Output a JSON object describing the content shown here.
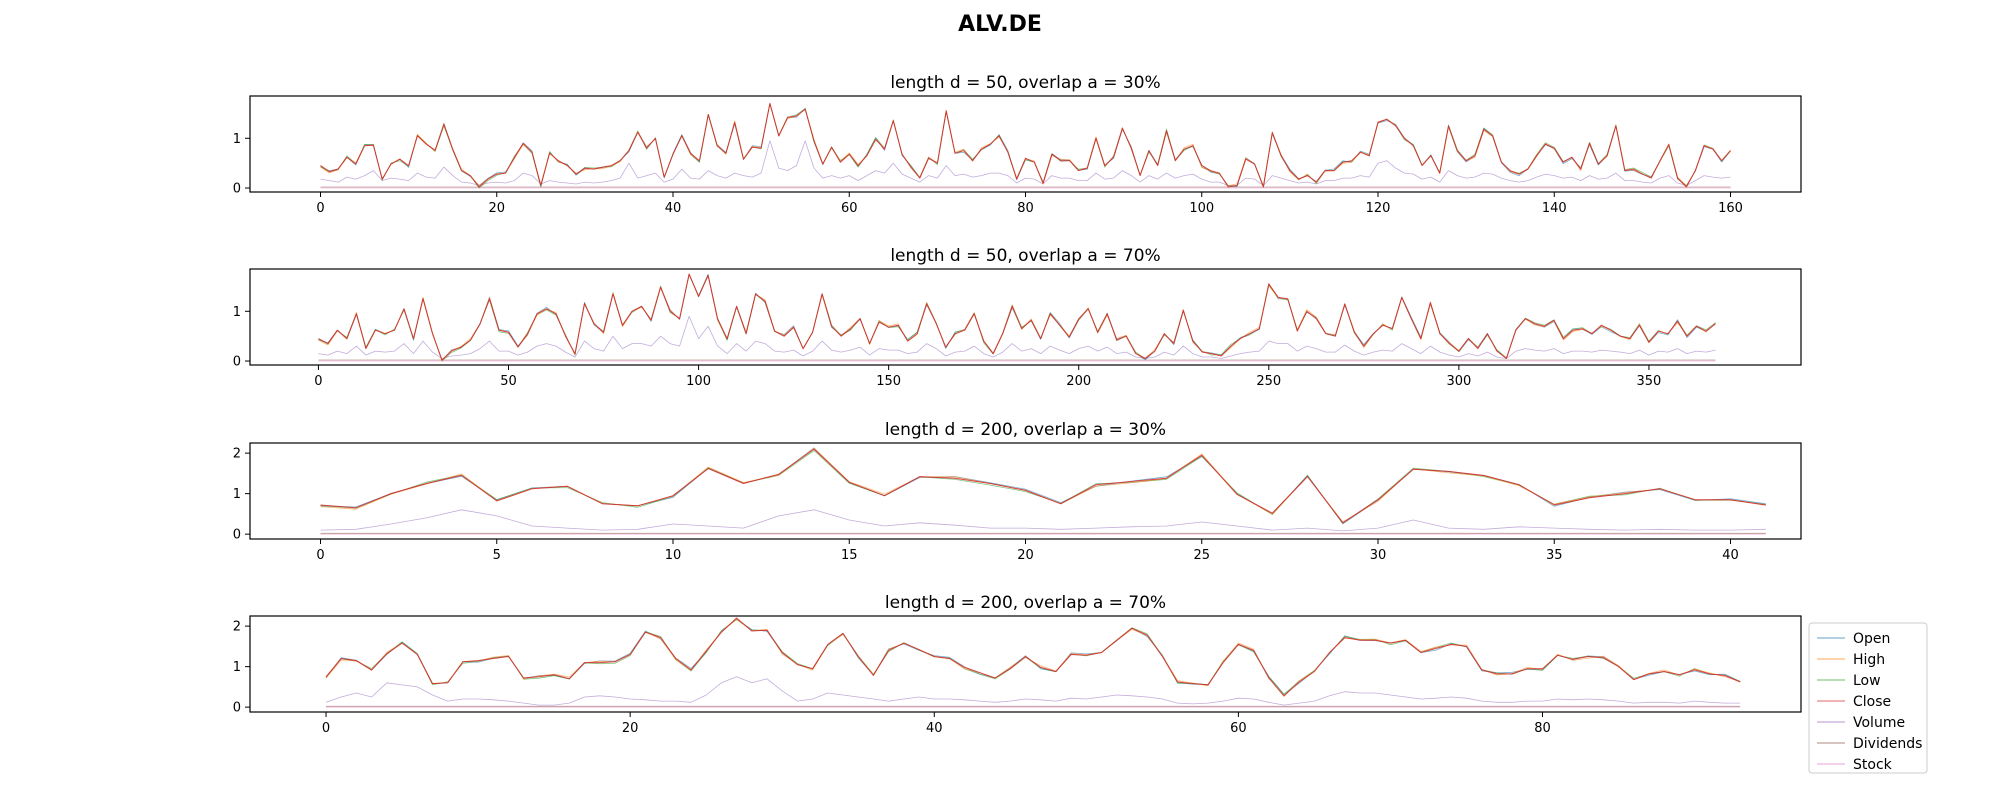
{
  "title": "ALV.DE",
  "legend": {
    "placement": "right",
    "entries": [
      "Open",
      "High",
      "Low",
      "Close",
      "Volume",
      "Dividends",
      "Stock"
    ]
  },
  "chart_data": [
    {
      "type": "line",
      "title": "length d = 50, overlap a = 30%",
      "xlim": [
        -8,
        168
      ],
      "ylim": [
        -0.08,
        1.85
      ],
      "xticks": [
        0,
        20,
        40,
        60,
        80,
        100,
        120,
        140,
        160
      ],
      "yticks": [
        0,
        1
      ],
      "grid": false,
      "x_start": 0,
      "x_step": 1,
      "close": [
        0.45,
        0.33,
        0.38,
        0.62,
        0.48,
        0.85,
        0.86,
        0.18,
        0.48,
        0.58,
        0.45,
        1.05,
        0.88,
        0.76,
        1.28,
        0.78,
        0.35,
        0.25,
        0.02,
        0.18,
        0.28,
        0.3,
        0.62,
        0.9,
        0.72,
        0.05,
        0.7,
        0.55,
        0.45,
        0.28,
        0.4,
        0.38,
        0.42,
        0.45,
        0.55,
        0.75,
        1.12,
        0.8,
        1.0,
        0.22,
        0.68,
        1.05,
        0.7,
        0.55,
        1.48,
        0.85,
        0.7,
        1.32,
        0.58,
        0.82,
        0.8,
        1.7,
        1.05,
        1.42,
        1.45,
        1.58,
        0.95,
        0.48,
        0.82,
        0.52,
        0.68,
        0.45,
        0.65,
        0.98,
        0.78,
        1.35,
        0.68,
        0.42,
        0.2,
        0.6,
        0.5,
        1.55,
        0.7,
        0.75,
        0.55,
        0.78,
        0.88,
        1.05,
        0.72,
        0.18,
        0.6,
        0.52,
        0.1,
        0.68,
        0.55,
        0.55,
        0.35,
        0.4,
        1.0,
        0.45,
        0.62,
        1.2,
        0.8,
        0.25,
        0.75,
        0.45,
        1.15,
        0.55,
        0.78,
        0.85,
        0.45,
        0.35,
        0.3,
        0.02,
        0.05,
        0.58,
        0.48,
        0.02,
        1.12,
        0.65,
        0.35,
        0.18,
        0.25,
        0.12,
        0.35,
        0.35,
        0.52,
        0.55,
        0.72,
        0.65,
        1.32,
        1.38,
        1.25,
        1.0,
        0.85,
        0.45,
        0.65,
        0.3,
        1.25,
        0.75,
        0.55,
        0.65,
        1.18,
        1.05,
        0.52,
        0.35,
        0.28,
        0.38,
        0.65,
        0.88,
        0.8,
        0.52,
        0.62,
        0.38,
        0.9,
        0.48,
        0.65,
        1.25,
        0.35,
        0.38,
        0.28,
        0.2,
        0.55,
        0.88,
        0.2,
        0.02,
        0.35,
        0.85,
        0.78,
        0.55,
        0.75
      ],
      "volume": [
        0.18,
        0.15,
        0.12,
        0.22,
        0.18,
        0.25,
        0.35,
        0.15,
        0.2,
        0.18,
        0.15,
        0.3,
        0.22,
        0.2,
        0.42,
        0.25,
        0.12,
        0.1,
        0.05,
        0.1,
        0.12,
        0.1,
        0.15,
        0.3,
        0.25,
        0.08,
        0.15,
        0.12,
        0.1,
        0.08,
        0.12,
        0.1,
        0.12,
        0.15,
        0.2,
        0.5,
        0.2,
        0.25,
        0.3,
        0.12,
        0.18,
        0.38,
        0.2,
        0.18,
        0.35,
        0.25,
        0.2,
        0.3,
        0.25,
        0.22,
        0.3,
        0.95,
        0.4,
        0.35,
        0.45,
        0.95,
        0.4,
        0.2,
        0.25,
        0.2,
        0.25,
        0.15,
        0.25,
        0.35,
        0.3,
        0.5,
        0.28,
        0.2,
        0.12,
        0.25,
        0.2,
        0.45,
        0.25,
        0.28,
        0.22,
        0.25,
        0.3,
        0.3,
        0.25,
        0.1,
        0.2,
        0.18,
        0.08,
        0.25,
        0.2,
        0.2,
        0.15,
        0.15,
        0.3,
        0.18,
        0.2,
        0.35,
        0.25,
        0.12,
        0.25,
        0.18,
        0.3,
        0.2,
        0.25,
        0.28,
        0.18,
        0.12,
        0.12,
        0.05,
        0.05,
        0.2,
        0.18,
        0.05,
        0.25,
        0.2,
        0.15,
        0.1,
        0.12,
        0.08,
        0.15,
        0.15,
        0.2,
        0.2,
        0.25,
        0.22,
        0.5,
        0.55,
        0.4,
        0.3,
        0.28,
        0.18,
        0.22,
        0.12,
        0.35,
        0.25,
        0.2,
        0.22,
        0.3,
        0.28,
        0.2,
        0.15,
        0.12,
        0.15,
        0.22,
        0.28,
        0.25,
        0.2,
        0.22,
        0.15,
        0.25,
        0.18,
        0.2,
        0.3,
        0.15,
        0.15,
        0.12,
        0.1,
        0.2,
        0.25,
        0.1,
        0.05,
        0.15,
        0.25,
        0.22,
        0.2,
        0.22
      ],
      "dividends": 0.02
    },
    {
      "type": "line",
      "title": "length d = 50, overlap a = 70%",
      "xlim": [
        -18,
        390
      ],
      "ylim": [
        -0.08,
        1.85
      ],
      "xticks": [
        0,
        50,
        100,
        150,
        200,
        250,
        300,
        350
      ],
      "yticks": [
        0,
        1
      ],
      "grid": false,
      "x_start": 0,
      "x_step": 2.5,
      "close": [
        0.45,
        0.35,
        0.62,
        0.45,
        0.95,
        0.25,
        0.62,
        0.55,
        0.62,
        1.05,
        0.45,
        1.25,
        0.55,
        0.02,
        0.2,
        0.28,
        0.42,
        0.75,
        1.25,
        0.62,
        0.58,
        0.28,
        0.55,
        0.95,
        1.05,
        0.95,
        0.5,
        0.15,
        1.15,
        0.75,
        0.58,
        1.35,
        0.72,
        1.0,
        1.1,
        0.82,
        1.48,
        1.0,
        0.85,
        1.75,
        1.3,
        1.72,
        0.85,
        0.45,
        1.1,
        0.55,
        1.35,
        1.2,
        0.6,
        0.5,
        0.68,
        0.25,
        0.58,
        1.35,
        0.7,
        0.5,
        0.65,
        0.85,
        0.35,
        0.78,
        0.68,
        0.72,
        0.4,
        0.55,
        1.15,
        0.75,
        0.28,
        0.55,
        0.62,
        0.95,
        0.4,
        0.15,
        0.55,
        1.1,
        0.65,
        0.82,
        0.45,
        0.95,
        0.72,
        0.48,
        0.85,
        1.05,
        0.58,
        0.95,
        0.42,
        0.5,
        0.15,
        0.05,
        0.2,
        0.55,
        0.35,
        1.02,
        0.4,
        0.18,
        0.15,
        0.1,
        0.3,
        0.45,
        0.55,
        0.65,
        1.55,
        1.28,
        1.25,
        0.6,
        1.0,
        0.85,
        0.55,
        0.5,
        1.15,
        0.58,
        0.3,
        0.55,
        0.72,
        0.65,
        1.28,
        0.85,
        0.45,
        1.18,
        0.55,
        0.35,
        0.2,
        0.45,
        0.25,
        0.55,
        0.2,
        0.05,
        0.62,
        0.85,
        0.75,
        0.7,
        0.82,
        0.45,
        0.62,
        0.65,
        0.55,
        0.72,
        0.62,
        0.5,
        0.45,
        0.72,
        0.38,
        0.6,
        0.55,
        0.8,
        0.5,
        0.7,
        0.6,
        0.75
      ],
      "volume": [
        0.15,
        0.12,
        0.2,
        0.15,
        0.3,
        0.12,
        0.2,
        0.18,
        0.2,
        0.35,
        0.15,
        0.4,
        0.18,
        0.05,
        0.1,
        0.12,
        0.15,
        0.25,
        0.4,
        0.2,
        0.2,
        0.12,
        0.18,
        0.3,
        0.35,
        0.3,
        0.18,
        0.08,
        0.4,
        0.25,
        0.2,
        0.5,
        0.25,
        0.35,
        0.35,
        0.3,
        0.5,
        0.35,
        0.3,
        0.9,
        0.45,
        0.7,
        0.3,
        0.15,
        0.35,
        0.2,
        0.4,
        0.35,
        0.2,
        0.18,
        0.22,
        0.1,
        0.2,
        0.4,
        0.22,
        0.18,
        0.22,
        0.28,
        0.12,
        0.25,
        0.22,
        0.22,
        0.15,
        0.18,
        0.35,
        0.25,
        0.1,
        0.18,
        0.2,
        0.3,
        0.15,
        0.08,
        0.18,
        0.35,
        0.2,
        0.25,
        0.15,
        0.3,
        0.22,
        0.15,
        0.25,
        0.3,
        0.2,
        0.28,
        0.15,
        0.18,
        0.08,
        0.05,
        0.08,
        0.18,
        0.12,
        0.3,
        0.15,
        0.08,
        0.08,
        0.05,
        0.1,
        0.15,
        0.18,
        0.2,
        0.4,
        0.35,
        0.35,
        0.2,
        0.3,
        0.25,
        0.18,
        0.18,
        0.32,
        0.2,
        0.12,
        0.18,
        0.22,
        0.2,
        0.35,
        0.25,
        0.15,
        0.3,
        0.18,
        0.12,
        0.08,
        0.15,
        0.1,
        0.18,
        0.08,
        0.05,
        0.2,
        0.25,
        0.22,
        0.2,
        0.25,
        0.15,
        0.2,
        0.2,
        0.18,
        0.22,
        0.2,
        0.18,
        0.15,
        0.22,
        0.12,
        0.2,
        0.18,
        0.25,
        0.15,
        0.2,
        0.18,
        0.22
      ],
      "dividends": 0.02
    },
    {
      "type": "line",
      "title": "length d = 200, overlap a = 30%",
      "xlim": [
        -2,
        42
      ],
      "ylim": [
        -0.12,
        2.25
      ],
      "xticks": [
        0,
        5,
        10,
        15,
        20,
        25,
        30,
        35,
        40
      ],
      "yticks": [
        0,
        1,
        2
      ],
      "grid": false,
      "x_start": 0,
      "x_step": 1,
      "close": [
        0.72,
        0.65,
        1.0,
        1.25,
        1.45,
        0.82,
        1.12,
        1.18,
        0.75,
        0.7,
        0.95,
        1.62,
        1.25,
        1.48,
        2.1,
        1.28,
        0.95,
        1.42,
        1.38,
        1.25,
        1.08,
        0.75,
        1.22,
        1.3,
        1.38,
        1.95,
        0.98,
        0.52,
        1.42,
        0.28,
        0.85,
        1.6,
        1.55,
        1.45,
        1.22,
        0.72,
        0.9,
        1.0,
        1.12,
        0.85,
        0.85,
        0.72
      ],
      "volume": [
        0.1,
        0.12,
        0.25,
        0.4,
        0.6,
        0.45,
        0.2,
        0.15,
        0.1,
        0.12,
        0.25,
        0.2,
        0.15,
        0.45,
        0.6,
        0.35,
        0.2,
        0.28,
        0.22,
        0.15,
        0.15,
        0.12,
        0.15,
        0.18,
        0.2,
        0.3,
        0.2,
        0.1,
        0.15,
        0.08,
        0.15,
        0.35,
        0.15,
        0.12,
        0.18,
        0.15,
        0.12,
        0.1,
        0.12,
        0.1,
        0.1,
        0.12
      ],
      "dividends": 0.02
    },
    {
      "type": "line",
      "title": "length d = 200, overlap a = 70%",
      "xlim": [
        -5,
        97
      ],
      "ylim": [
        -0.12,
        2.25
      ],
      "xticks": [
        0,
        20,
        40,
        60,
        80
      ],
      "yticks": [
        0,
        1,
        2
      ],
      "grid": false,
      "x_start": 0,
      "x_step": 1,
      "close": [
        0.75,
        1.2,
        1.15,
        0.92,
        1.32,
        1.58,
        1.3,
        0.58,
        0.6,
        1.12,
        1.15,
        1.2,
        1.25,
        0.72,
        0.75,
        0.8,
        0.7,
        1.1,
        1.1,
        1.12,
        1.3,
        1.85,
        1.72,
        1.2,
        0.92,
        1.38,
        1.85,
        2.2,
        1.88,
        1.9,
        1.35,
        1.05,
        0.95,
        1.55,
        1.82,
        1.25,
        0.78,
        1.4,
        1.58,
        1.42,
        1.25,
        1.2,
        0.98,
        0.85,
        0.72,
        0.95,
        1.25,
        0.98,
        0.88,
        1.3,
        1.28,
        1.35,
        1.65,
        1.95,
        1.78,
        1.25,
        0.62,
        0.58,
        0.55,
        1.1,
        1.55,
        1.4,
        0.72,
        0.28,
        0.62,
        0.88,
        1.35,
        1.72,
        1.65,
        1.65,
        1.58,
        1.65,
        1.35,
        1.45,
        1.55,
        1.5,
        0.92,
        0.82,
        0.82,
        0.95,
        0.95,
        1.28,
        1.18,
        1.25,
        1.22,
        1.0,
        0.68,
        0.82,
        0.88,
        0.8,
        0.92,
        0.82,
        0.78,
        0.62
      ],
      "volume": [
        0.12,
        0.25,
        0.35,
        0.25,
        0.6,
        0.55,
        0.5,
        0.3,
        0.15,
        0.2,
        0.2,
        0.18,
        0.15,
        0.1,
        0.05,
        0.05,
        0.1,
        0.25,
        0.28,
        0.25,
        0.2,
        0.18,
        0.15,
        0.15,
        0.12,
        0.3,
        0.6,
        0.75,
        0.6,
        0.7,
        0.4,
        0.15,
        0.2,
        0.35,
        0.3,
        0.25,
        0.2,
        0.15,
        0.2,
        0.25,
        0.2,
        0.2,
        0.18,
        0.15,
        0.12,
        0.15,
        0.2,
        0.18,
        0.15,
        0.22,
        0.2,
        0.25,
        0.3,
        0.28,
        0.25,
        0.2,
        0.1,
        0.08,
        0.1,
        0.15,
        0.22,
        0.2,
        0.12,
        0.05,
        0.1,
        0.15,
        0.28,
        0.38,
        0.35,
        0.35,
        0.3,
        0.25,
        0.2,
        0.22,
        0.25,
        0.22,
        0.15,
        0.12,
        0.12,
        0.15,
        0.15,
        0.2,
        0.18,
        0.2,
        0.18,
        0.15,
        0.1,
        0.12,
        0.12,
        0.1,
        0.15,
        0.12,
        0.1,
        0.1
      ],
      "dividends": 0.02
    }
  ],
  "colors": {
    "Open": "#1f77b4",
    "High": "#ff7f0e",
    "Low": "#2ca02c",
    "Close": "#d62728",
    "Volume": "#9467bd",
    "Dividends": "#8c564b",
    "Stock": "#e377c2"
  }
}
